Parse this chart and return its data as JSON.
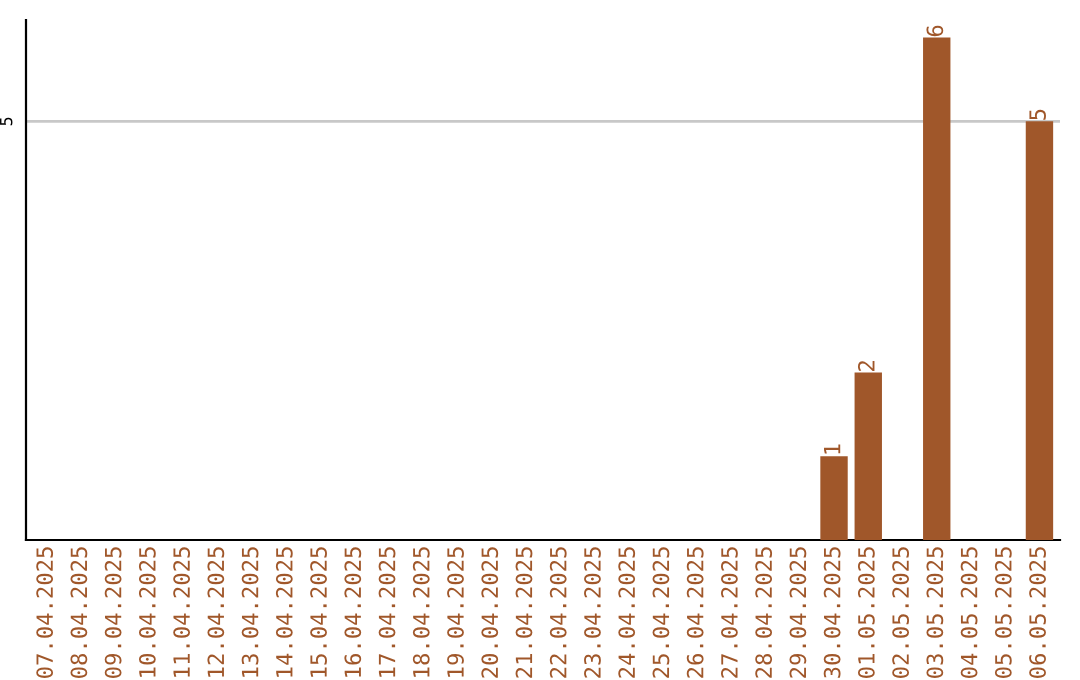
{
  "chart_data": {
    "type": "bar",
    "categories": [
      "07.04.2025",
      "08.04.2025",
      "09.04.2025",
      "10.04.2025",
      "11.04.2025",
      "12.04.2025",
      "13.04.2025",
      "14.04.2025",
      "15.04.2025",
      "16.04.2025",
      "17.04.2025",
      "18.04.2025",
      "19.04.2025",
      "20.04.2025",
      "21.04.2025",
      "22.04.2025",
      "23.04.2025",
      "24.04.2025",
      "25.04.2025",
      "26.04.2025",
      "27.04.2025",
      "28.04.2025",
      "29.04.2025",
      "30.04.2025",
      "01.05.2025",
      "02.05.2025",
      "03.05.2025",
      "04.05.2025",
      "05.05.2025",
      "06.05.2025"
    ],
    "values": [
      null,
      null,
      null,
      null,
      null,
      null,
      null,
      null,
      null,
      null,
      null,
      null,
      null,
      null,
      null,
      null,
      null,
      null,
      null,
      null,
      null,
      null,
      null,
      1,
      2,
      null,
      6,
      null,
      null,
      5
    ],
    "data_labels": true,
    "color": "#a0572a",
    "ref_lines": [
      {
        "axis": "y",
        "value": 5,
        "label": "5",
        "color": "#c8c8c8"
      }
    ]
  }
}
